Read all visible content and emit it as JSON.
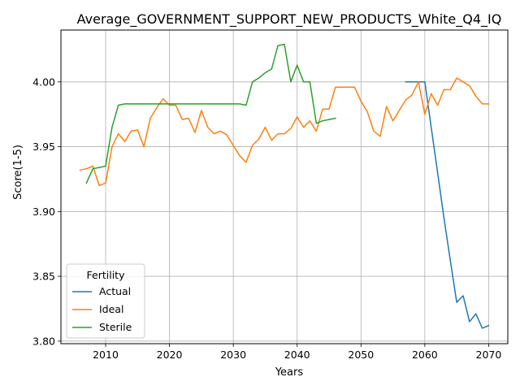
{
  "chart_data": {
    "type": "line",
    "title": "Average_GOVERNMENT_SUPPORT_NEW_PRODUCTS_White_Q4_IQ",
    "xlabel": "Years",
    "ylabel": "Score(1-5)",
    "xlim": [
      2003,
      2073
    ],
    "ylim": [
      3.798,
      4.04
    ],
    "xticks": [
      2010,
      2020,
      2030,
      2040,
      2050,
      2060,
      2070
    ],
    "yticks": [
      3.8,
      3.85,
      3.9,
      3.95,
      4.0
    ],
    "ytick_labels": [
      "3.80",
      "3.85",
      "3.90",
      "3.95",
      "4.00"
    ],
    "grid": true,
    "legend": {
      "title": "Fertility",
      "placement": "lower-left"
    },
    "series": [
      {
        "name": "Actual",
        "color": "#1f77b4",
        "x": [
          2057,
          2058,
          2059,
          2060,
          2061,
          2062,
          2063,
          2064,
          2065,
          2066,
          2067,
          2068,
          2069,
          2070
        ],
        "values": [
          4.0,
          4.0,
          4.0,
          4.0,
          3.965,
          3.93,
          3.895,
          3.862,
          3.83,
          3.835,
          3.815,
          3.821,
          3.81,
          3.812
        ]
      },
      {
        "name": "Ideal",
        "color": "#ff7f0e",
        "x": [
          2006,
          2007,
          2008,
          2009,
          2010,
          2011,
          2012,
          2013,
          2014,
          2015,
          2016,
          2017,
          2018,
          2019,
          2020,
          2021,
          2022,
          2023,
          2024,
          2025,
          2026,
          2027,
          2028,
          2029,
          2030,
          2031,
          2032,
          2033,
          2034,
          2035,
          2036,
          2037,
          2038,
          2039,
          2040,
          2041,
          2042,
          2043,
          2044,
          2045,
          2046,
          2047,
          2048,
          2049,
          2050,
          2051,
          2052,
          2053,
          2054,
          2055,
          2056,
          2057,
          2058,
          2059,
          2060,
          2061,
          2062,
          2063,
          2064,
          2065,
          2066,
          2067,
          2068,
          2069,
          2070
        ],
        "values": [
          3.932,
          3.933,
          3.935,
          3.92,
          3.922,
          3.95,
          3.96,
          3.954,
          3.962,
          3.963,
          3.95,
          3.972,
          3.98,
          3.987,
          3.982,
          3.982,
          3.971,
          3.972,
          3.961,
          3.978,
          3.965,
          3.96,
          3.962,
          3.959,
          3.951,
          3.943,
          3.938,
          3.951,
          3.956,
          3.965,
          3.955,
          3.96,
          3.96,
          3.964,
          3.973,
          3.965,
          3.97,
          3.962,
          3.979,
          3.979,
          3.996,
          3.996,
          3.996,
          3.996,
          3.985,
          3.977,
          3.962,
          3.958,
          3.981,
          3.97,
          3.978,
          3.986,
          3.99,
          4.0,
          3.975,
          3.991,
          3.982,
          3.994,
          3.994,
          4.003,
          4.0,
          3.997,
          3.989,
          3.983,
          3.983
        ]
      },
      {
        "name": "Sterile",
        "color": "#2ca02c",
        "x": [
          2007,
          2008,
          2009,
          2010,
          2011,
          2012,
          2013,
          2014,
          2015,
          2016,
          2017,
          2018,
          2019,
          2020,
          2021,
          2022,
          2023,
          2024,
          2025,
          2026,
          2027,
          2028,
          2029,
          2030,
          2031,
          2032,
          2033,
          2034,
          2035,
          2036,
          2037,
          2038,
          2039,
          2040,
          2041,
          2042,
          2043,
          2044,
          2045,
          2046
        ],
        "values": [
          3.922,
          3.933,
          3.934,
          3.935,
          3.965,
          3.982,
          3.983,
          3.983,
          3.983,
          3.983,
          3.983,
          3.983,
          3.983,
          3.983,
          3.983,
          3.983,
          3.983,
          3.983,
          3.983,
          3.983,
          3.983,
          3.983,
          3.983,
          3.983,
          3.983,
          3.982,
          4.0,
          4.003,
          4.007,
          4.01,
          4.028,
          4.029,
          4.0,
          4.013,
          4.0,
          4.0,
          3.968,
          3.97,
          3.971,
          3.972
        ]
      }
    ]
  }
}
